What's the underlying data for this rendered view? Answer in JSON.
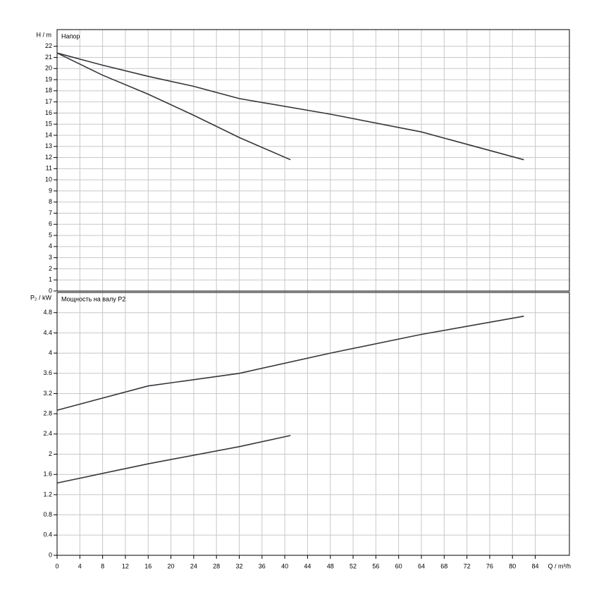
{
  "chart_data": [
    {
      "type": "line",
      "title": "Напор",
      "y_label": "H / m",
      "xlim": [
        0,
        90
      ],
      "xticks": [
        0,
        4,
        8,
        12,
        16,
        20,
        24,
        28,
        32,
        36,
        40,
        44,
        48,
        52,
        56,
        60,
        64,
        68,
        72,
        76,
        80,
        84
      ],
      "ylim": [
        0,
        23.5
      ],
      "yticks": [
        0,
        1,
        2,
        3,
        4,
        5,
        6,
        7,
        8,
        9,
        10,
        11,
        12,
        13,
        14,
        15,
        16,
        17,
        18,
        19,
        20,
        21,
        22
      ],
      "grid": true,
      "series": [
        {
          "color": "#33363f",
          "x": [
            0,
            8,
            16,
            24,
            32,
            48,
            64,
            82
          ],
          "values": [
            21.4,
            20.3,
            19.3,
            18.4,
            17.3,
            15.9,
            14.3,
            11.8
          ]
        },
        {
          "color": "#33363f",
          "x": [
            0,
            8,
            16,
            24,
            32,
            41
          ],
          "values": [
            21.4,
            19.4,
            17.7,
            15.8,
            13.8,
            11.8
          ]
        }
      ]
    },
    {
      "type": "line",
      "title": "Мощность на валу P2",
      "y_label": "P₂ / kW",
      "x_label": "Q / m³/h",
      "xlim": [
        0,
        90
      ],
      "xticks": [
        0,
        4,
        8,
        12,
        16,
        20,
        24,
        28,
        32,
        36,
        40,
        44,
        48,
        52,
        56,
        60,
        64,
        68,
        72,
        76,
        80,
        84
      ],
      "ylim": [
        0,
        5.2
      ],
      "yticks": [
        0,
        0.4,
        0.8,
        1.2,
        1.6,
        2,
        2.4,
        2.8,
        3.2,
        3.6,
        4,
        4.4,
        4.8
      ],
      "grid": true,
      "series": [
        {
          "color": "#33363f",
          "x": [
            0,
            16,
            32,
            48,
            64,
            82
          ],
          "values": [
            2.87,
            3.35,
            3.6,
            4.0,
            4.37,
            4.73
          ]
        },
        {
          "color": "#33363f",
          "x": [
            0,
            16,
            32,
            41
          ],
          "values": [
            1.43,
            1.81,
            2.15,
            2.37
          ]
        }
      ]
    }
  ]
}
